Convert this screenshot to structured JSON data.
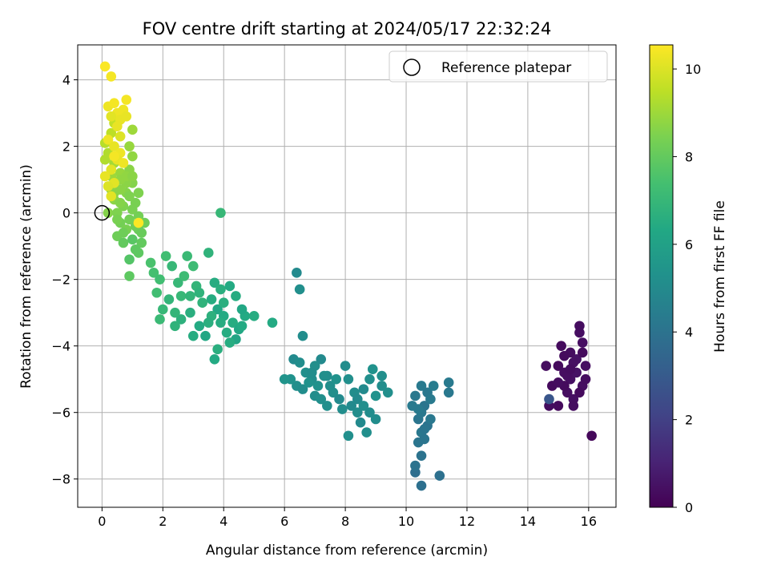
{
  "chart_data": {
    "type": "scatter",
    "title": "FOV centre drift starting at 2024/05/17 22:32:24",
    "xlabel": "Angular distance from reference (arcmin)",
    "ylabel": "Rotation from reference (arcmin)",
    "xlim": [
      -0.8,
      16.9
    ],
    "ylim": [
      -8.85,
      5.05
    ],
    "xticks": [
      0,
      2,
      4,
      6,
      8,
      10,
      12,
      14,
      16
    ],
    "yticks": [
      -8,
      -6,
      -4,
      -2,
      0,
      2,
      4
    ],
    "grid": true,
    "legend": {
      "position": "top-right",
      "entries": [
        {
          "label": "Reference platepar",
          "marker": "open-circle"
        }
      ]
    },
    "reference_point": {
      "x": 0,
      "y": 0
    },
    "colorbar": {
      "label": "Hours from first FF file",
      "colormap": "viridis",
      "range": [
        0,
        10.55
      ],
      "ticks": [
        0,
        2,
        4,
        6,
        8,
        10
      ]
    },
    "series": [
      {
        "points": [
          [
            15.0,
            -4.6,
            0.3
          ],
          [
            15.2,
            -4.8,
            0.4
          ],
          [
            14.6,
            -4.6,
            0.35
          ],
          [
            14.8,
            -5.2,
            0.3
          ],
          [
            15.4,
            -5.0,
            0.45
          ],
          [
            15.6,
            -4.4,
            0.5
          ],
          [
            15.7,
            -3.6,
            0.4
          ],
          [
            15.7,
            -3.4,
            0.35
          ],
          [
            15.8,
            -4.2,
            0.3
          ],
          [
            15.3,
            -5.4,
            0.4
          ],
          [
            15.5,
            -5.6,
            0.45
          ],
          [
            15.0,
            -5.8,
            0.3
          ],
          [
            14.7,
            -5.8,
            0.35
          ],
          [
            16.1,
            -6.7,
            0.2
          ],
          [
            15.9,
            -4.6,
            0.4
          ],
          [
            15.1,
            -4.0,
            0.3
          ],
          [
            15.4,
            -4.2,
            0.35
          ],
          [
            15.6,
            -4.8,
            0.5
          ],
          [
            15.8,
            -5.2,
            0.4
          ],
          [
            15.2,
            -5.2,
            0.3
          ],
          [
            15.0,
            -5.1,
            0.35
          ],
          [
            15.5,
            -4.5,
            0.45
          ],
          [
            15.3,
            -4.9,
            0.4
          ],
          [
            15.7,
            -5.4,
            0.3
          ],
          [
            15.9,
            -5.0,
            0.35
          ],
          [
            15.5,
            -5.8,
            0.4
          ],
          [
            14.7,
            -5.6,
            2.8
          ],
          [
            15.8,
            -3.9,
            0.4
          ],
          [
            15.2,
            -4.3,
            0.3
          ],
          [
            15.4,
            -4.7,
            0.35
          ],
          [
            10.5,
            -8.2,
            3.9
          ],
          [
            10.5,
            -7.3,
            4.0
          ],
          [
            10.3,
            -7.8,
            3.8
          ],
          [
            11.1,
            -7.9,
            3.9
          ],
          [
            10.3,
            -7.6,
            4.0
          ],
          [
            10.4,
            -6.9,
            4.1
          ],
          [
            10.5,
            -6.6,
            4.2
          ],
          [
            10.7,
            -6.4,
            4.0
          ],
          [
            10.6,
            -6.8,
            4.1
          ],
          [
            10.8,
            -6.2,
            4.2
          ],
          [
            10.4,
            -6.2,
            4.1
          ],
          [
            10.2,
            -5.8,
            4.3
          ],
          [
            10.3,
            -5.5,
            4.2
          ],
          [
            10.5,
            -5.2,
            4.3
          ],
          [
            10.7,
            -5.4,
            4.2
          ],
          [
            10.9,
            -5.2,
            4.4
          ],
          [
            11.4,
            -5.1,
            4.3
          ],
          [
            11.4,
            -5.4,
            4.2
          ],
          [
            10.6,
            -5.8,
            4.1
          ],
          [
            10.8,
            -5.6,
            4.3
          ],
          [
            10.5,
            -6.0,
            4.2
          ],
          [
            10.6,
            -6.5,
            4.1
          ],
          [
            10.4,
            -5.9,
            4.3
          ],
          [
            6.4,
            -1.8,
            5.0
          ],
          [
            6.5,
            -2.3,
            5.2
          ],
          [
            6.6,
            -3.7,
            5.1
          ],
          [
            6.3,
            -4.4,
            5.0
          ],
          [
            6.5,
            -4.5,
            5.1
          ],
          [
            6.7,
            -4.8,
            5.2
          ],
          [
            6.9,
            -5.0,
            5.1
          ],
          [
            7.1,
            -5.2,
            5.3
          ],
          [
            7.2,
            -4.4,
            5.0
          ],
          [
            7.0,
            -4.6,
            5.2
          ],
          [
            7.4,
            -4.9,
            5.1
          ],
          [
            6.4,
            -5.2,
            5.2
          ],
          [
            6.2,
            -5.0,
            5.3
          ],
          [
            6.0,
            -5.0,
            5.4
          ],
          [
            6.6,
            -5.3,
            5.1
          ],
          [
            7.6,
            -5.4,
            5.2
          ],
          [
            7.8,
            -5.6,
            5.0
          ],
          [
            8.0,
            -4.6,
            5.1
          ],
          [
            8.1,
            -5.0,
            5.2
          ],
          [
            8.3,
            -5.4,
            5.1
          ],
          [
            8.4,
            -5.6,
            5.0
          ],
          [
            8.6,
            -5.8,
            5.2
          ],
          [
            8.8,
            -6.0,
            5.1
          ],
          [
            8.5,
            -6.3,
            5.0
          ],
          [
            8.7,
            -6.6,
            5.2
          ],
          [
            9.0,
            -6.2,
            5.1
          ],
          [
            8.1,
            -6.7,
            5.2
          ],
          [
            8.9,
            -4.7,
            5.3
          ],
          [
            9.2,
            -4.9,
            5.2
          ],
          [
            9.2,
            -5.2,
            5.1
          ],
          [
            9.4,
            -5.4,
            5.2
          ],
          [
            9.0,
            -5.5,
            5.3
          ],
          [
            8.6,
            -5.3,
            5.0
          ],
          [
            7.9,
            -5.9,
            5.1
          ],
          [
            7.4,
            -5.8,
            5.2
          ],
          [
            7.0,
            -5.5,
            5.1
          ],
          [
            6.8,
            -5.1,
            5.3
          ],
          [
            7.5,
            -5.2,
            5.2
          ],
          [
            8.2,
            -5.8,
            5.0
          ],
          [
            8.4,
            -6.0,
            5.1
          ],
          [
            7.2,
            -5.6,
            5.2
          ],
          [
            7.7,
            -5.0,
            5.3
          ],
          [
            6.9,
            -4.8,
            5.1
          ],
          [
            8.8,
            -5.0,
            5.2
          ],
          [
            7.3,
            -4.9,
            5.2
          ],
          [
            3.5,
            -1.2,
            6.8
          ],
          [
            3.7,
            -2.1,
            6.5
          ],
          [
            3.9,
            -2.3,
            6.6
          ],
          [
            4.2,
            -2.2,
            6.4
          ],
          [
            3.6,
            -2.6,
            6.5
          ],
          [
            3.8,
            -2.9,
            6.3
          ],
          [
            4.0,
            -3.1,
            6.4
          ],
          [
            4.3,
            -3.3,
            6.5
          ],
          [
            4.5,
            -3.5,
            6.3
          ],
          [
            4.7,
            -3.1,
            6.4
          ],
          [
            4.4,
            -3.8,
            6.2
          ],
          [
            4.1,
            -3.6,
            6.5
          ],
          [
            3.8,
            -4.1,
            6.6
          ],
          [
            3.7,
            -4.4,
            6.4
          ],
          [
            3.9,
            -3.3,
            6.5
          ],
          [
            3.4,
            -3.7,
            6.3
          ],
          [
            3.2,
            -3.4,
            6.4
          ],
          [
            3.0,
            -3.7,
            6.5
          ],
          [
            2.9,
            -3.0,
            6.6
          ],
          [
            2.6,
            -3.2,
            6.7
          ],
          [
            2.4,
            -3.4,
            6.8
          ],
          [
            2.2,
            -2.6,
            6.9
          ],
          [
            2.0,
            -2.9,
            7.0
          ],
          [
            1.9,
            -3.2,
            7.1
          ],
          [
            2.5,
            -2.1,
            7.0
          ],
          [
            2.7,
            -1.9,
            7.2
          ],
          [
            2.3,
            -1.6,
            7.0
          ],
          [
            2.1,
            -1.3,
            7.3
          ],
          [
            2.8,
            -1.3,
            7.1
          ],
          [
            3.0,
            -1.6,
            7.2
          ],
          [
            3.1,
            -2.2,
            6.9
          ],
          [
            3.3,
            -2.7,
            6.8
          ],
          [
            3.6,
            -3.1,
            6.7
          ],
          [
            4.0,
            -2.7,
            6.6
          ],
          [
            4.4,
            -2.5,
            6.5
          ],
          [
            4.6,
            -3.4,
            6.4
          ],
          [
            5.0,
            -3.1,
            6.5
          ],
          [
            5.6,
            -3.3,
            6.4
          ],
          [
            1.8,
            -2.4,
            7.3
          ],
          [
            1.7,
            -1.8,
            7.4
          ],
          [
            1.6,
            -1.5,
            7.5
          ],
          [
            1.9,
            -2.0,
            7.3
          ],
          [
            2.6,
            -2.5,
            7.0
          ],
          [
            2.9,
            -2.5,
            6.9
          ],
          [
            3.5,
            -3.3,
            6.6
          ],
          [
            4.2,
            -3.9,
            6.5
          ],
          [
            3.9,
            -0.0,
            7.0
          ],
          [
            2.4,
            -3.0,
            6.9
          ],
          [
            3.2,
            -2.4,
            6.8
          ],
          [
            4.6,
            -2.9,
            6.3
          ],
          [
            1.0,
            -0.8,
            7.8
          ],
          [
            0.9,
            -1.4,
            7.7
          ],
          [
            0.9,
            -1.9,
            7.9
          ],
          [
            1.2,
            -0.5,
            8.1
          ],
          [
            1.3,
            -0.9,
            8.0
          ],
          [
            1.2,
            -1.2,
            7.9
          ],
          [
            1.4,
            -0.3,
            8.2
          ],
          [
            1.1,
            0.3,
            8.4
          ],
          [
            1.2,
            0.6,
            8.5
          ],
          [
            1.0,
            0.9,
            8.6
          ],
          [
            0.9,
            1.3,
            8.7
          ],
          [
            1.0,
            1.7,
            8.8
          ],
          [
            0.9,
            2.0,
            8.9
          ],
          [
            1.0,
            2.5,
            9.0
          ],
          [
            0.8,
            0.6,
            8.6
          ],
          [
            0.7,
            0.2,
            8.5
          ],
          [
            0.6,
            -0.3,
            8.3
          ],
          [
            0.5,
            -0.7,
            8.2
          ],
          [
            0.7,
            -0.9,
            8.0
          ],
          [
            0.8,
            -0.5,
            8.4
          ],
          [
            0.3,
            0.7,
            8.8
          ],
          [
            0.4,
            0.4,
            8.7
          ],
          [
            0.2,
            0.0,
            8.6
          ],
          [
            0.5,
            0.0,
            8.5
          ],
          [
            0.6,
            0.3,
            8.6
          ],
          [
            0.9,
            -0.2,
            8.3
          ],
          [
            1.1,
            -0.4,
            8.2
          ],
          [
            1.0,
            0.1,
            8.4
          ],
          [
            0.8,
            0.9,
            8.7
          ],
          [
            0.6,
            1.2,
            8.9
          ],
          [
            0.4,
            1.5,
            9.1
          ],
          [
            0.2,
            1.8,
            9.3
          ],
          [
            0.1,
            2.1,
            9.4
          ],
          [
            0.3,
            2.4,
            9.5
          ],
          [
            0.4,
            2.7,
            9.6
          ],
          [
            0.6,
            1.0,
            8.8
          ],
          [
            0.8,
            1.1,
            8.8
          ],
          [
            1.0,
            1.1,
            8.7
          ],
          [
            1.2,
            -0.1,
            8.3
          ],
          [
            0.7,
            -0.6,
            8.2
          ],
          [
            0.5,
            -0.2,
            8.4
          ],
          [
            0.4,
            0.6,
            8.7
          ],
          [
            0.3,
            1.1,
            9.0
          ],
          [
            0.1,
            1.6,
            9.3
          ],
          [
            1.1,
            -1.1,
            7.9
          ],
          [
            1.3,
            -0.6,
            8.1
          ],
          [
            0.6,
            0.7,
            8.7
          ],
          [
            0.9,
            0.5,
            8.5
          ],
          [
            0.1,
            4.4,
            10.5
          ],
          [
            0.3,
            4.1,
            10.4
          ],
          [
            0.2,
            3.2,
            10.3
          ],
          [
            0.4,
            3.3,
            10.4
          ],
          [
            0.5,
            3.0,
            10.3
          ],
          [
            0.6,
            2.8,
            10.2
          ],
          [
            0.7,
            3.1,
            10.3
          ],
          [
            0.8,
            3.4,
            10.4
          ],
          [
            0.5,
            2.6,
            10.2
          ],
          [
            0.3,
            2.9,
            10.1
          ],
          [
            0.2,
            2.2,
            10.3
          ],
          [
            0.4,
            2.0,
            10.2
          ],
          [
            0.6,
            1.8,
            10.3
          ],
          [
            0.5,
            1.6,
            10.2
          ],
          [
            0.7,
            1.5,
            10.3
          ],
          [
            0.3,
            1.3,
            10.1
          ],
          [
            0.1,
            1.1,
            10.2
          ],
          [
            0.4,
            0.9,
            10.1
          ],
          [
            0.2,
            0.8,
            10.0
          ],
          [
            0.3,
            0.5,
            10.1
          ],
          [
            0.6,
            2.3,
            10.0
          ],
          [
            0.8,
            2.9,
            10.2
          ],
          [
            1.2,
            -0.3,
            10.5
          ],
          [
            0.4,
            1.7,
            10.4
          ]
        ]
      }
    ]
  }
}
